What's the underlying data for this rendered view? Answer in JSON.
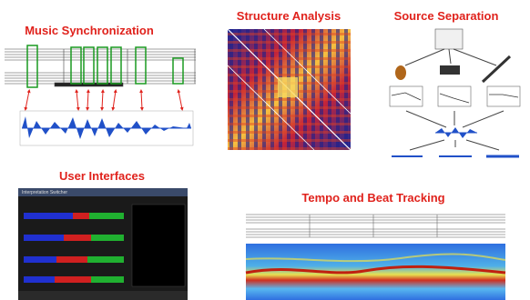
{
  "panels": [
    {
      "title": "Music Synchronization"
    },
    {
      "title": "Structure Analysis"
    },
    {
      "title": "Source Separation"
    },
    {
      "title": "User Interfaces"
    },
    {
      "title": "Tempo and Beat Tracking"
    }
  ],
  "user_interface": {
    "window_title": "Interpretation Switcher"
  }
}
